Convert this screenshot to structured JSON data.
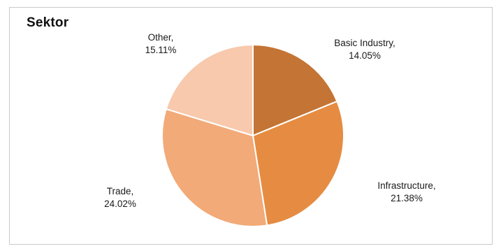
{
  "chart_data": {
    "type": "pie",
    "title": "Sektor",
    "slices": [
      {
        "label": "Basic Industry,",
        "value_text": "14.05%",
        "value": 14.05,
        "color": "#c47434"
      },
      {
        "label": "Infrastructure,",
        "value_text": "21.38%",
        "value": 21.38,
        "color": "#e58c42"
      },
      {
        "label": "Trade,",
        "value_text": "24.02%",
        "value": 24.02,
        "color": "#f2aa78"
      },
      {
        "label": "Other,",
        "value_text": "15.11%",
        "value": 15.11,
        "color": "#f8c9ad"
      }
    ],
    "legend": "none",
    "start": "top",
    "direction": "clockwise"
  }
}
